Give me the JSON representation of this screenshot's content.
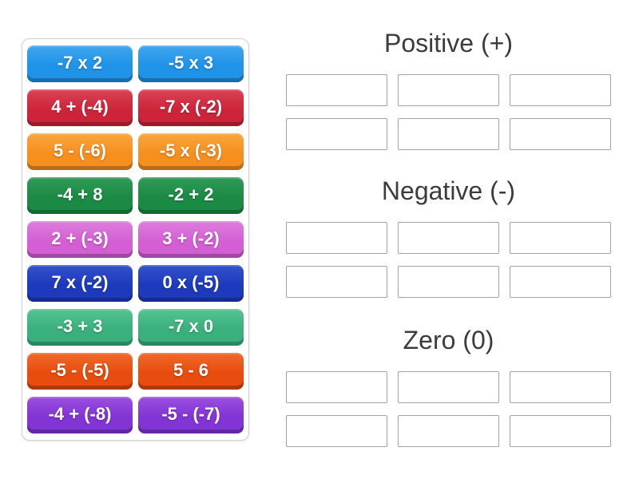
{
  "page": {
    "background": "#ffffff",
    "header_text_color": "#3c3c3c",
    "tile_text_color": "#ffffff",
    "slot_border_color": "#a3a3a3"
  },
  "game": {
    "tiles": [
      {
        "label": "-7 x 2",
        "color_top": "#41a6ee",
        "color_main": "#1e93e8"
      },
      {
        "label": "-5 x 3",
        "color_top": "#41a6ee",
        "color_main": "#1e93e8"
      },
      {
        "label": "4 + (-4)",
        "color_top": "#d94356",
        "color_main": "#ce2439"
      },
      {
        "label": "-7 x (-2)",
        "color_top": "#d94356",
        "color_main": "#ce2439"
      },
      {
        "label": "5 - (-6)",
        "color_top": "#f9a63f",
        "color_main": "#f78f1e"
      },
      {
        "label": "-5 x (-3)",
        "color_top": "#f9a63f",
        "color_main": "#f78f1e"
      },
      {
        "label": "-4 + 8",
        "color_top": "#2f9c58",
        "color_main": "#1b8a45"
      },
      {
        "label": "-2 + 2",
        "color_top": "#2f9c58",
        "color_main": "#1b8a45"
      },
      {
        "label": "2 + (-3)",
        "color_top": "#dd7ddd",
        "color_main": "#d45fd4"
      },
      {
        "label": "3 + (-2)",
        "color_top": "#dd7ddd",
        "color_main": "#d45fd4"
      },
      {
        "label": "7 x (-2)",
        "color_top": "#3352cc",
        "color_main": "#1d3abd"
      },
      {
        "label": "0 x (-5)",
        "color_top": "#3352cc",
        "color_main": "#1d3abd"
      },
      {
        "label": "-3 + 3",
        "color_top": "#55c493",
        "color_main": "#3ab07d"
      },
      {
        "label": "-7 x 0",
        "color_top": "#55c493",
        "color_main": "#3ab07d"
      },
      {
        "label": "-5 - (-5)",
        "color_top": "#ef6a2a",
        "color_main": "#e84c0e"
      },
      {
        "label": "5 - 6",
        "color_top": "#ef6a2a",
        "color_main": "#e84c0e"
      },
      {
        "label": "-4 + (-8)",
        "color_top": "#9a4fe0",
        "color_main": "#8334d4"
      },
      {
        "label": "-5 - (-7)",
        "color_top": "#9a4fe0",
        "color_main": "#8334d4"
      }
    ],
    "groups": [
      {
        "id": "positive",
        "title": "Positive (+)",
        "empty_slots": 6
      },
      {
        "id": "negative",
        "title": "Negative (-)",
        "empty_slots": 6
      },
      {
        "id": "zero",
        "title": "Zero (0)",
        "empty_slots": 6
      }
    ]
  }
}
